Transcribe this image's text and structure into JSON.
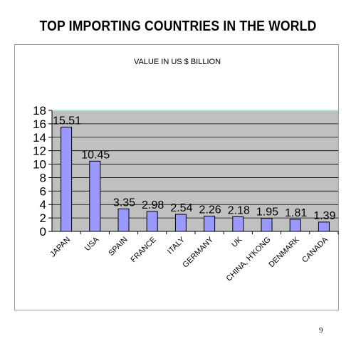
{
  "page": {
    "title": "TOP IMPORTING COUNTRIES IN THE WORLD",
    "page_number": "9"
  },
  "chart_data": {
    "type": "bar",
    "subtitle": "VALUE IN US $ BILLION",
    "categories": [
      "JAPAN",
      "USA",
      "SPAIN",
      "FRANCE",
      "ITALY",
      "GERMANY",
      "UK",
      "CHINA, H'KONG",
      "DENMARK",
      "CANADA"
    ],
    "values": [
      15.51,
      10.45,
      3.35,
      2.98,
      2.54,
      2.26,
      2.18,
      1.95,
      1.81,
      1.39
    ],
    "value_labels": [
      "15.51",
      "10.45",
      "3.35",
      "2.98",
      "2.54",
      "2.26",
      "2.18",
      "1.95",
      "1.81",
      "1.39"
    ],
    "ylim": [
      0,
      18
    ],
    "yticks": [
      0,
      2,
      4,
      6,
      8,
      10,
      12,
      14,
      16,
      18
    ],
    "ytick_labels": [
      "0",
      "2",
      "4",
      "6",
      "8",
      "10",
      "12",
      "14",
      "16",
      "18"
    ],
    "grid": true,
    "colors": {
      "bar_fill": "#9999ff",
      "bar_stroke": "#000000",
      "plot_background": "#c0c0c0",
      "plot_top_edge": "#a8f0f0",
      "gridline": "#000000"
    }
  }
}
